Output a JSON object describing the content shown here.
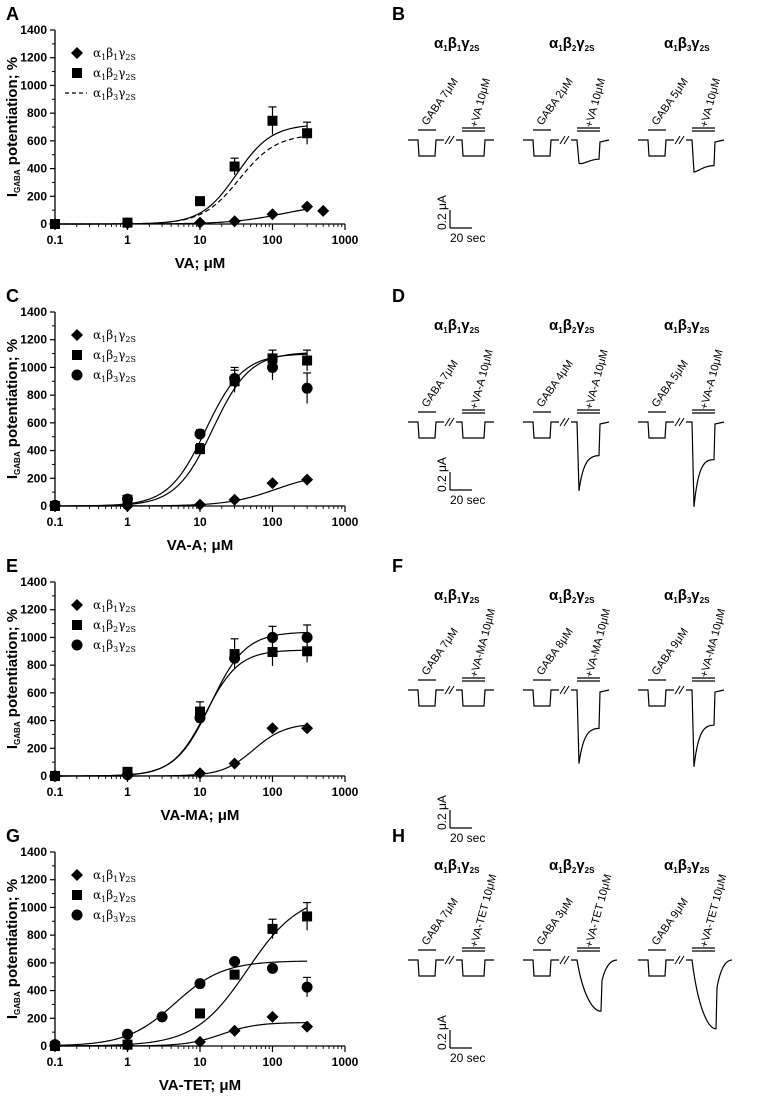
{
  "figure": {
    "subunits": [
      {
        "a": "α",
        "a_sub": "1",
        "b": "β",
        "b_sub": "1",
        "g": "γ",
        "g_sub": "2S"
      },
      {
        "a": "α",
        "a_sub": "1",
        "b": "β",
        "b_sub": "2",
        "g": "γ",
        "g_sub": "2S"
      },
      {
        "a": "α",
        "a_sub": "1",
        "b": "β",
        "b_sub": "3",
        "g": "γ",
        "g_sub": "2S"
      }
    ],
    "ylabel_main": "I",
    "ylabel_sub": "GABA",
    "ylabel_rest": " potentiation; %",
    "scale_current": "0.2 μA",
    "scale_time": "20 sec"
  },
  "chart_data": [
    {
      "panel": "A",
      "type": "scatter",
      "xlabel": "VA; μM",
      "x_scale": "log",
      "xlim": [
        0.1,
        1000
      ],
      "ylim": [
        0,
        1400
      ],
      "x_ticks": [
        "0.1",
        "1",
        "10",
        "100",
        "1000"
      ],
      "y_ticks": [
        "0",
        "200",
        "400",
        "600",
        "800",
        "1000",
        "1200",
        "1400"
      ],
      "legend": "top-left",
      "series": [
        {
          "name": "α1β1γ2S",
          "marker": "diamond",
          "x": [
            0.1,
            1,
            10,
            30,
            100,
            300,
            500
          ],
          "y": [
            0,
            5,
            10,
            20,
            70,
            125,
            95
          ],
          "err": [
            0,
            0,
            0,
            0,
            0,
            0,
            0
          ],
          "fit": {
            "bottom": 0,
            "top": 150,
            "ec50": 140,
            "n": 1.2
          },
          "fit_style": "solid"
        },
        {
          "name": "α1β2γ2S",
          "marker": "square",
          "x": [
            0.1,
            1,
            10,
            30,
            100,
            300
          ],
          "y": [
            0,
            10,
            165,
            415,
            745,
            655
          ],
          "err": [
            0,
            0,
            0,
            60,
            100,
            80
          ],
          "fit": {
            "bottom": 0,
            "top": 720,
            "ec50": 32,
            "n": 1.8
          },
          "fit_style": "solid"
        },
        {
          "name": "α1β3γ2S",
          "marker": "none",
          "x": [],
          "y": [],
          "err": [],
          "fit": {
            "bottom": 0,
            "top": 650,
            "ec50": 35,
            "n": 1.7
          },
          "fit_style": "dashed"
        }
      ]
    },
    {
      "panel": "C",
      "type": "scatter",
      "xlabel": "VA-A; μM",
      "x_scale": "log",
      "xlim": [
        0.1,
        1000
      ],
      "ylim": [
        0,
        1400
      ],
      "x_ticks": [
        "0.1",
        "1",
        "10",
        "100",
        "1000"
      ],
      "y_ticks": [
        "0",
        "200",
        "400",
        "600",
        "800",
        "1000",
        "1200",
        "1400"
      ],
      "legend": "top-left",
      "series": [
        {
          "name": "α1β1γ2S",
          "marker": "diamond",
          "x": [
            0.1,
            1,
            10,
            30,
            100,
            300
          ],
          "y": [
            0,
            0,
            10,
            45,
            165,
            190
          ],
          "err": [
            0,
            0,
            0,
            0,
            0,
            0
          ],
          "fit": {
            "bottom": 0,
            "top": 240,
            "ec50": 110,
            "n": 1.3
          },
          "fit_style": "solid"
        },
        {
          "name": "α1β2γ2S",
          "marker": "square",
          "x": [
            0.1,
            1,
            10,
            30,
            100,
            300
          ],
          "y": [
            0,
            45,
            410,
            900,
            1065,
            1050
          ],
          "err": [
            0,
            0,
            40,
            80,
            60,
            75
          ],
          "fit": {
            "bottom": 0,
            "top": 1110,
            "ec50": 15,
            "n": 1.7
          },
          "fit_style": "solid"
        },
        {
          "name": "α1β3γ2S",
          "marker": "circle",
          "x": [
            0.1,
            1,
            10,
            30,
            100,
            300
          ],
          "y": [
            5,
            50,
            520,
            920,
            1000,
            850
          ],
          "err": [
            0,
            0,
            30,
            80,
            90,
            110
          ],
          "fit": {
            "bottom": 0,
            "top": 1100,
            "ec50": 12,
            "n": 1.7
          },
          "fit_style": "solid"
        }
      ]
    },
    {
      "panel": "E",
      "type": "scatter",
      "xlabel": "VA-MA; μM",
      "x_scale": "log",
      "xlim": [
        0.1,
        1000
      ],
      "ylim": [
        0,
        1400
      ],
      "x_ticks": [
        "0.1",
        "1",
        "10",
        "100",
        "1000"
      ],
      "y_ticks": [
        "0",
        "200",
        "400",
        "600",
        "800",
        "1000",
        "1200",
        "1400"
      ],
      "legend": "top-left",
      "series": [
        {
          "name": "α1β1γ2S",
          "marker": "diamond",
          "x": [
            0.1,
            1,
            10,
            30,
            100,
            300
          ],
          "y": [
            0,
            5,
            20,
            90,
            345,
            345
          ],
          "err": [
            0,
            0,
            0,
            0,
            0,
            0
          ],
          "fit": {
            "bottom": 0,
            "top": 380,
            "ec50": 55,
            "n": 2.0
          },
          "fit_style": "solid"
        },
        {
          "name": "α1β2γ2S",
          "marker": "square",
          "x": [
            0.1,
            1,
            10,
            30,
            100,
            300
          ],
          "y": [
            0,
            30,
            465,
            880,
            895,
            900
          ],
          "err": [
            0,
            0,
            70,
            110,
            100,
            80
          ],
          "fit": {
            "bottom": 0,
            "top": 910,
            "ec50": 12,
            "n": 1.9
          },
          "fit_style": "solid"
        },
        {
          "name": "α1β3γ2S",
          "marker": "circle",
          "x": [
            0.1,
            1,
            10,
            30,
            100,
            300
          ],
          "y": [
            0,
            10,
            420,
            850,
            1000,
            1000
          ],
          "err": [
            0,
            0,
            0,
            0,
            80,
            90
          ],
          "fit": {
            "bottom": 0,
            "top": 1040,
            "ec50": 14,
            "n": 1.8
          },
          "fit_style": "solid"
        }
      ]
    },
    {
      "panel": "G",
      "type": "scatter",
      "xlabel": "VA-TET; μM",
      "x_scale": "log",
      "xlim": [
        0.1,
        1000
      ],
      "ylim": [
        0,
        1400
      ],
      "x_ticks": [
        "0.1",
        "1",
        "10",
        "100",
        "1000"
      ],
      "y_ticks": [
        "0",
        "200",
        "400",
        "600",
        "800",
        "1000",
        "1200",
        "1400"
      ],
      "legend": "top-left",
      "series": [
        {
          "name": "α1β1γ2S",
          "marker": "diamond",
          "x": [
            0.1,
            1,
            10,
            30,
            100,
            300
          ],
          "y": [
            0,
            5,
            30,
            110,
            210,
            140
          ],
          "err": [
            0,
            0,
            0,
            0,
            0,
            0
          ],
          "fit": {
            "bottom": 0,
            "top": 170,
            "ec50": 20,
            "n": 1.8
          },
          "fit_style": "solid"
        },
        {
          "name": "α1β2γ2S",
          "marker": "square",
          "x": [
            0.1,
            1,
            10,
            30,
            100,
            300
          ],
          "y": [
            0,
            10,
            235,
            515,
            845,
            935
          ],
          "err": [
            0,
            0,
            0,
            0,
            70,
            100
          ],
          "fit": {
            "bottom": 0,
            "top": 1100,
            "ec50": 45,
            "n": 1.2
          },
          "fit_style": "solid"
        },
        {
          "name": "α1β3γ2S",
          "marker": "circle",
          "x": [
            0.1,
            1,
            3,
            10,
            30,
            100,
            300
          ],
          "y": [
            10,
            85,
            210,
            450,
            610,
            560,
            425
          ],
          "err": [
            0,
            0,
            0,
            0,
            0,
            0,
            70
          ],
          "fit": {
            "bottom": 0,
            "top": 615,
            "ec50": 4.5,
            "n": 1.3
          },
          "fit_style": "solid"
        }
      ]
    }
  ],
  "trace_panels": [
    {
      "panel": "B",
      "compound_label": "+VA 10μM",
      "gaba": [
        "GABA 7μM",
        "GABA 2μM",
        "GABA 5μM"
      ],
      "peak_factor": [
        0,
        0.45,
        1.0
      ],
      "ss_factor": [
        0,
        0.2,
        0.6
      ]
    },
    {
      "panel": "D",
      "compound_label": "+VA-A 10μM",
      "gaba": [
        "GABA 7μM",
        "GABA 4μM",
        "GABA 5μM"
      ],
      "peak_factor": [
        0,
        3.3,
        4.3
      ],
      "ss_factor": [
        0,
        1.1,
        1.35
      ]
    },
    {
      "panel": "F",
      "compound_label": "+VA-MA 10μM",
      "gaba": [
        "GABA 7μM",
        "GABA 8μM",
        "GABA 9μM"
      ],
      "peak_factor": [
        0,
        3.6,
        3.8
      ],
      "ss_factor": [
        0,
        1.4,
        1.2
      ]
    },
    {
      "panel": "H",
      "compound_label": "+VA-TET 10μM",
      "gaba": [
        "GABA 7μM",
        "GABA 3μM",
        "GABA 9μM"
      ],
      "peak_factor": [
        0,
        2.2,
        3.3
      ],
      "ss_factor": [
        0,
        0.0,
        0.0
      ]
    }
  ]
}
